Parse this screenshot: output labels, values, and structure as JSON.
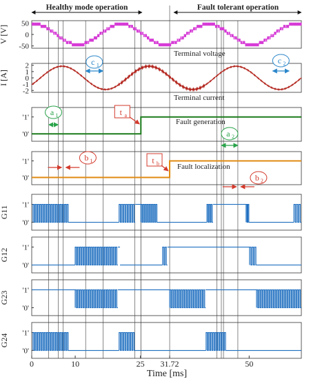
{
  "chart_data": {
    "type": "line",
    "xlabel": "Time [ms]",
    "xlim": [
      0,
      62
    ],
    "xticks": [
      {
        "v": 0,
        "label": "0"
      },
      {
        "v": 10,
        "label": "10"
      },
      {
        "v": 25,
        "label": "25"
      },
      {
        "v": 31.72,
        "label": "31.72"
      },
      {
        "v": 50,
        "label": "50"
      }
    ],
    "section_labels": {
      "healthy": "Healthy mode operation",
      "fault": "Fault tolerant operation"
    },
    "vertical_markers_ms": [
      3.9,
      6.1,
      7.2,
      12.4,
      16.4,
      23.7,
      25.1,
      42.6,
      43.6,
      44.1,
      47.4
    ],
    "series": [
      {
        "id": "voltage",
        "ylabel": "V [V]",
        "title": "Terminal voltage",
        "yticks": [
          50,
          0,
          -50
        ],
        "ylim": [
          -60,
          60
        ],
        "period_ms": 20,
        "phase_ms": 15.6,
        "amplitude": 45,
        "levels": [
          -50,
          -40,
          -30,
          -20,
          -10,
          0,
          10,
          20,
          30,
          40,
          50
        ],
        "color": "#d63ad6"
      },
      {
        "id": "current",
        "ylabel": "I [A]",
        "title": "Terminal current",
        "yticks": [
          2,
          1,
          0,
          -1,
          -2
        ],
        "ylim": [
          -2.3,
          2.3
        ],
        "period_ms": 20,
        "phase_ms": 2.0,
        "amplitude": 1.85,
        "ripple": 0.12,
        "color": "#b3261e"
      },
      {
        "id": "fault_gen",
        "ylabel": "",
        "title": "Fault generation",
        "yticks": [
          "'1'",
          "'0'"
        ],
        "transition_ms": 25.1,
        "color": "#1a7a1a"
      },
      {
        "id": "fault_loc",
        "ylabel": "",
        "title": "Fault localization",
        "yticks": [
          "'1'",
          "'0'"
        ],
        "transition_ms": 31.72,
        "color": "#e08a10"
      },
      {
        "id": "G11",
        "ylabel": "G11",
        "yticks": [
          "'1'",
          "'0'"
        ],
        "color": "#1f6fc0",
        "segments": [
          {
            "type": "sw",
            "a": 0.3,
            "b": 8.6
          },
          {
            "type": "lo",
            "a": 8.6,
            "b": 20.1
          },
          {
            "type": "sw",
            "a": 20.1,
            "b": 23.8
          },
          {
            "type": "hi",
            "a": 23.8,
            "b": 25.1
          },
          {
            "type": "sw",
            "a": 25.1,
            "b": 29.0
          },
          {
            "type": "lo",
            "a": 29.0,
            "b": 40.3
          },
          {
            "type": "sw",
            "a": 40.3,
            "b": 41.7
          },
          {
            "type": "hi",
            "a": 41.7,
            "b": 49.3
          },
          {
            "type": "sw",
            "a": 49.3,
            "b": 50.1
          },
          {
            "type": "lo",
            "a": 50.1,
            "b": 60.3
          },
          {
            "type": "sw",
            "a": 60.3,
            "b": 62
          }
        ]
      },
      {
        "id": "G12",
        "ylabel": "G12",
        "yticks": [
          "'1'",
          "'0'"
        ],
        "color": "#1f6fc0",
        "segments": [
          {
            "type": "lo",
            "a": 0,
            "b": 10.0
          },
          {
            "type": "sw",
            "a": 10.0,
            "b": 19.8
          },
          {
            "type": "hi",
            "a": 19.8,
            "b": 20.3
          },
          {
            "type": "lo",
            "a": 20.3,
            "b": 30.1
          },
          {
            "type": "sw",
            "a": 30.1,
            "b": 31.2
          },
          {
            "type": "hi",
            "a": 31.2,
            "b": 50.1
          },
          {
            "type": "sw",
            "a": 50.1,
            "b": 51.8
          },
          {
            "type": "lo",
            "a": 51.8,
            "b": 62
          }
        ]
      },
      {
        "id": "G23",
        "ylabel": "G23",
        "yticks": [
          "'1'",
          "'0'"
        ],
        "color": "#1f6fc0",
        "segments": [
          {
            "type": "hi",
            "a": 0,
            "b": 10.0
          },
          {
            "type": "sw",
            "a": 10.0,
            "b": 19.8
          },
          {
            "type": "hi",
            "a": 19.8,
            "b": 31.72
          },
          {
            "type": "sw",
            "a": 31.72,
            "b": 40.0
          },
          {
            "type": "hi",
            "a": 40.0,
            "b": 51.7
          },
          {
            "type": "sw",
            "a": 51.7,
            "b": 62
          }
        ]
      },
      {
        "id": "G24",
        "ylabel": "G24",
        "yticks": [
          "'1'",
          "'0'"
        ],
        "color": "#1f6fc0",
        "segments": [
          {
            "type": "sw",
            "a": 0.3,
            "b": 8.6
          },
          {
            "type": "lo",
            "a": 8.6,
            "b": 20.1
          },
          {
            "type": "sw",
            "a": 20.1,
            "b": 23.8
          },
          {
            "type": "lo",
            "a": 23.8,
            "b": 40.1
          },
          {
            "type": "sw",
            "a": 40.1,
            "b": 44.8
          },
          {
            "type": "lo",
            "a": 44.8,
            "b": 62
          }
        ]
      }
    ],
    "annotations": [
      {
        "id": "a1",
        "label": "a",
        "sub": "1",
        "color": "#2aa34a",
        "x_ms": 3.9,
        "x2_ms": 6.1,
        "panel": "fault_gen",
        "dir": "both"
      },
      {
        "id": "a2",
        "label": "a",
        "sub": "2",
        "color": "#2aa34a",
        "x_ms": 43.6,
        "x2_ms": 47.4,
        "panel": "fault_gen",
        "dir": "both"
      },
      {
        "id": "b1",
        "label": "b",
        "sub": "1",
        "color": "#d33a2c",
        "x_ms": 7.2,
        "panel": "fault_loc",
        "dir": "pair"
      },
      {
        "id": "b2",
        "label": "b",
        "sub": "2",
        "color": "#d33a2c",
        "x_ms": 47.4,
        "panel": "fault_loc",
        "dir": "pair"
      },
      {
        "id": "c1",
        "label": "c",
        "sub": "1",
        "color": "#2a86c9",
        "x_ms": 12.4,
        "x2_ms": 16.4,
        "panel": "current",
        "dir": "both"
      },
      {
        "id": "c2",
        "label": "c",
        "sub": "2",
        "color": "#2a86c9",
        "x_ms": 55.4,
        "x2_ms": 59.2,
        "panel": "current",
        "dir": "both"
      },
      {
        "id": "ta",
        "label": "t",
        "sub": "a",
        "color": "#d33a2c",
        "x_ms": 25.1,
        "panel": "fault_gen"
      },
      {
        "id": "tb",
        "label": "t",
        "sub": "b",
        "color": "#d33a2c",
        "x_ms": 31.72,
        "panel": "fault_loc"
      }
    ]
  }
}
